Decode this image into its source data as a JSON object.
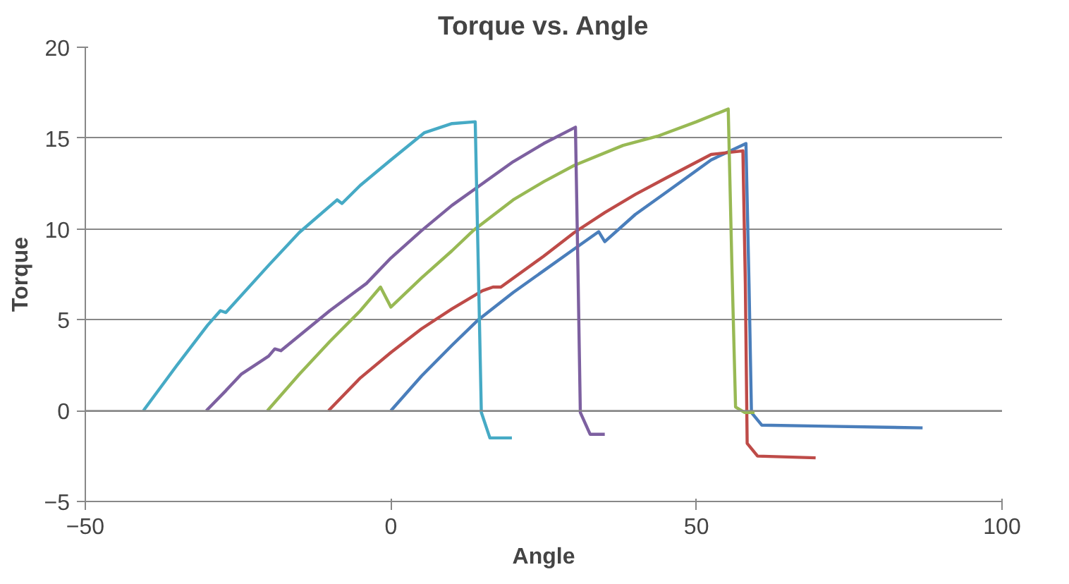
{
  "chart_data": {
    "type": "line",
    "title": "Torque vs. Angle",
    "xlabel": "Angle",
    "ylabel": "Torque",
    "xlim": [
      -50,
      100
    ],
    "ylim": [
      -5,
      20
    ],
    "xticks": [
      -50,
      0,
      50,
      100
    ],
    "yticks": [
      -5,
      0,
      5,
      10,
      15,
      20
    ],
    "grid": "y",
    "marker": "none",
    "line_style": "solid",
    "series": [
      {
        "color": "#4a7ebb",
        "x": [
          0,
          5,
          10,
          14.3,
          20,
          25,
          30,
          34,
          35,
          40,
          45,
          52.4,
          58.1,
          58.6,
          59,
          60.7,
          70,
          87
        ],
        "values": [
          0,
          1.9,
          3.6,
          5.0,
          6.5,
          7.7,
          8.9,
          9.85,
          9.3,
          10.8,
          12.0,
          13.8,
          14.7,
          7,
          -0.1,
          -0.8,
          -0.85,
          -0.95
        ]
      },
      {
        "color": "#be4b48",
        "x": [
          -10.2,
          -5,
          0,
          5,
          10,
          15,
          16.7,
          18,
          25,
          30,
          35,
          40,
          45,
          52.4,
          57.6,
          58,
          58.3,
          60,
          69.5
        ],
        "values": [
          0,
          1.8,
          3.2,
          4.5,
          5.6,
          6.6,
          6.8,
          6.8,
          8.5,
          9.8,
          10.9,
          11.9,
          12.8,
          14.1,
          14.3,
          7,
          -1.8,
          -2.5,
          -2.6
        ]
      },
      {
        "color": "#98b954",
        "x": [
          -20.2,
          -15,
          -10,
          -5,
          -1.7,
          0,
          5,
          10,
          13.6,
          20,
          25,
          30,
          38,
          43.6,
          50,
          55.2,
          55.8,
          56.4,
          57.9,
          59.5
        ],
        "values": [
          0,
          2.0,
          3.8,
          5.5,
          6.8,
          5.7,
          7.3,
          8.8,
          9.95,
          11.6,
          12.6,
          13.5,
          14.6,
          15.1,
          15.9,
          16.6,
          8,
          0.2,
          -0.1,
          -0.1
        ]
      },
      {
        "color": "#7d60a0",
        "x": [
          -30.2,
          -27,
          -24.5,
          -20,
          -19,
          -18,
          -10,
          -4,
          0,
          5,
          10,
          15,
          20,
          25,
          30.2,
          30.6,
          31,
          32.6,
          35
        ],
        "values": [
          0,
          1.1,
          2.0,
          3.0,
          3.4,
          3.3,
          5.5,
          7.0,
          8.4,
          9.9,
          11.3,
          12.5,
          13.7,
          14.7,
          15.6,
          8,
          -0.1,
          -1.3,
          -1.3
        ]
      },
      {
        "color": "#46aac5",
        "x": [
          -40.5,
          -35,
          -30,
          -27.9,
          -27,
          -20,
          -15,
          -8.8,
          -8,
          -5,
          0,
          5.5,
          10,
          13.8,
          14.3,
          14.8,
          16.2,
          19.8
        ],
        "values": [
          0,
          2.5,
          4.7,
          5.5,
          5.4,
          8.0,
          9.8,
          11.6,
          11.4,
          12.4,
          13.8,
          15.3,
          15.8,
          15.9,
          8,
          -0.1,
          -1.5,
          -1.5
        ]
      }
    ]
  }
}
